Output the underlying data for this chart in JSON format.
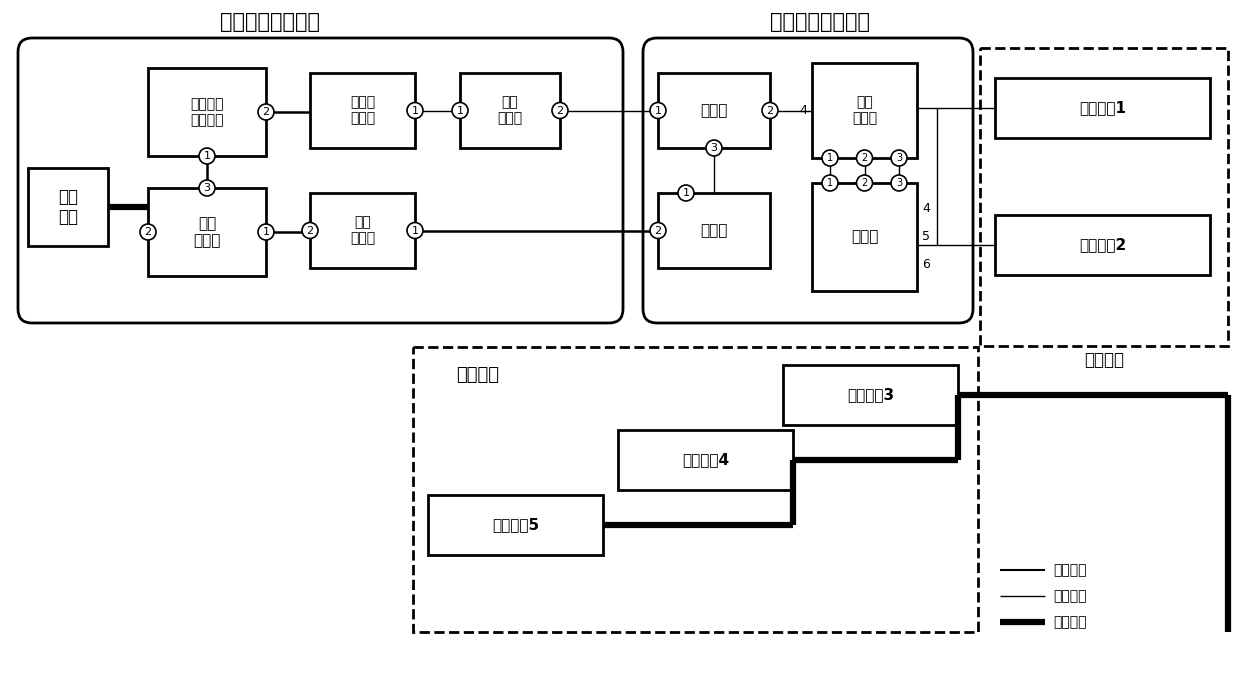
{
  "title_demod": "传感信息解调模块",
  "title_feed": "传感信息馈送网络",
  "title_lumped": "集总参量",
  "title_dist": "分布参量",
  "legend_items": [
    {
      "label": "电路传输",
      "lw": 1.5
    },
    {
      "label": "光路传输",
      "lw": 1.0
    },
    {
      "label": "传感途径",
      "lw": 4.5
    }
  ],
  "bg_color": "#ffffff"
}
